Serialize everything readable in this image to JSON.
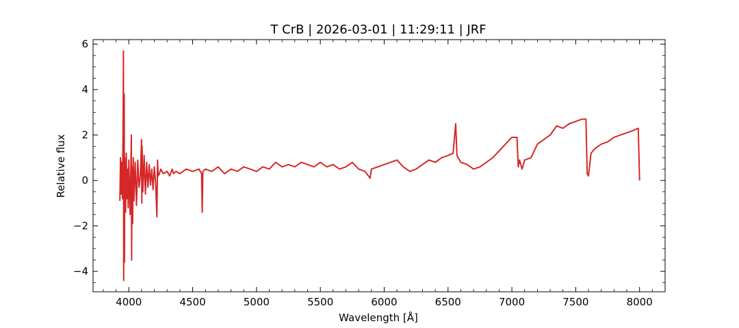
{
  "chart_data": {
    "type": "line",
    "title": "T CrB | 2026-03-01 | 11:29:11 | JRF",
    "xlabel": "Wavelength [Å]",
    "ylabel": "Relative flux",
    "xlim": [
      3720,
      8200
    ],
    "ylim": [
      -4.9,
      6.2
    ],
    "xticks": [
      4000,
      4500,
      5000,
      5500,
      6000,
      6500,
      7000,
      7500,
      8000
    ],
    "xtick_labels": [
      "4000",
      "4500",
      "5000",
      "5500",
      "6000",
      "6500",
      "7000",
      "7500",
      "8000"
    ],
    "yticks": [
      -4,
      -2,
      0,
      2,
      4,
      6
    ],
    "ytick_labels": [
      "−4",
      "−2",
      "0",
      "2",
      "4",
      "6"
    ],
    "grid": false,
    "series_color": "#d62728",
    "series": [
      {
        "name": "",
        "x": [
          3930,
          3935,
          3940,
          3945,
          3950,
          3955,
          3958,
          3960,
          3962,
          3964,
          3966,
          3968,
          3970,
          3972,
          3975,
          3980,
          3985,
          3990,
          3995,
          4000,
          4010,
          4020,
          4022,
          4025,
          4030,
          4035,
          4040,
          4050,
          4060,
          4070,
          4080,
          4090,
          4100,
          4102,
          4104,
          4110,
          4120,
          4130,
          4140,
          4150,
          4160,
          4170,
          4180,
          4190,
          4200,
          4210,
          4220,
          4225,
          4230,
          4240,
          4250,
          4270,
          4300,
          4320,
          4340,
          4350,
          4370,
          4400,
          4450,
          4500,
          4550,
          4570,
          4575,
          4580,
          4600,
          4650,
          4700,
          4750,
          4800,
          4850,
          4900,
          4950,
          5000,
          5050,
          5100,
          5150,
          5200,
          5250,
          5300,
          5350,
          5400,
          5450,
          5500,
          5550,
          5600,
          5650,
          5700,
          5750,
          5800,
          5850,
          5890,
          5900,
          5950,
          6000,
          6050,
          6100,
          6150,
          6200,
          6250,
          6300,
          6350,
          6400,
          6450,
          6500,
          6540,
          6560,
          6570,
          6600,
          6650,
          6700,
          6750,
          6800,
          6850,
          6900,
          6950,
          7000,
          7040,
          7050,
          7060,
          7080,
          7100,
          7150,
          7200,
          7250,
          7300,
          7350,
          7400,
          7450,
          7500,
          7550,
          7580,
          7590,
          7600,
          7620,
          7650,
          7700,
          7750,
          7800,
          7850,
          7900,
          7950,
          7990,
          8000
        ],
        "y": [
          -0.9,
          1.0,
          -0.6,
          0.8,
          -0.8,
          2.2,
          5.7,
          -4.4,
          1.5,
          3.8,
          -3.6,
          1.0,
          -0.2,
          0.7,
          -1.4,
          1.2,
          -0.8,
          0.5,
          -1.2,
          0.9,
          -1.5,
          2.0,
          -3.5,
          0.6,
          -1.9,
          1.0,
          -0.9,
          0.8,
          -1.1,
          0.9,
          -0.3,
          0.2,
          1.8,
          -1.0,
          1.5,
          -0.5,
          1.1,
          -0.6,
          0.8,
          -0.3,
          0.7,
          -0.2,
          0.5,
          -0.4,
          0.6,
          -0.1,
          -1.6,
          0.9,
          0.2,
          0.3,
          0.5,
          0.3,
          0.4,
          0.2,
          0.5,
          0.3,
          0.4,
          0.3,
          0.5,
          0.4,
          0.5,
          0.3,
          -1.4,
          0.4,
          0.5,
          0.4,
          0.6,
          0.3,
          0.5,
          0.4,
          0.6,
          0.5,
          0.4,
          0.6,
          0.5,
          0.8,
          0.6,
          0.7,
          0.6,
          0.8,
          0.7,
          0.6,
          0.8,
          0.6,
          0.7,
          0.5,
          0.6,
          0.8,
          0.5,
          0.4,
          0.1,
          0.5,
          0.6,
          0.7,
          0.8,
          0.9,
          0.6,
          0.4,
          0.5,
          0.7,
          0.9,
          0.8,
          1.0,
          1.1,
          1.2,
          2.5,
          1.1,
          0.8,
          0.7,
          0.5,
          0.6,
          0.8,
          1.0,
          1.3,
          1.6,
          1.9,
          1.9,
          0.6,
          0.9,
          0.5,
          0.9,
          1.0,
          1.6,
          1.8,
          2.0,
          2.4,
          2.3,
          2.5,
          2.6,
          2.7,
          2.7,
          0.3,
          0.2,
          1.2,
          1.4,
          1.6,
          1.7,
          1.9,
          2.0,
          2.1,
          2.2,
          2.3,
          0.0
        ]
      }
    ]
  }
}
